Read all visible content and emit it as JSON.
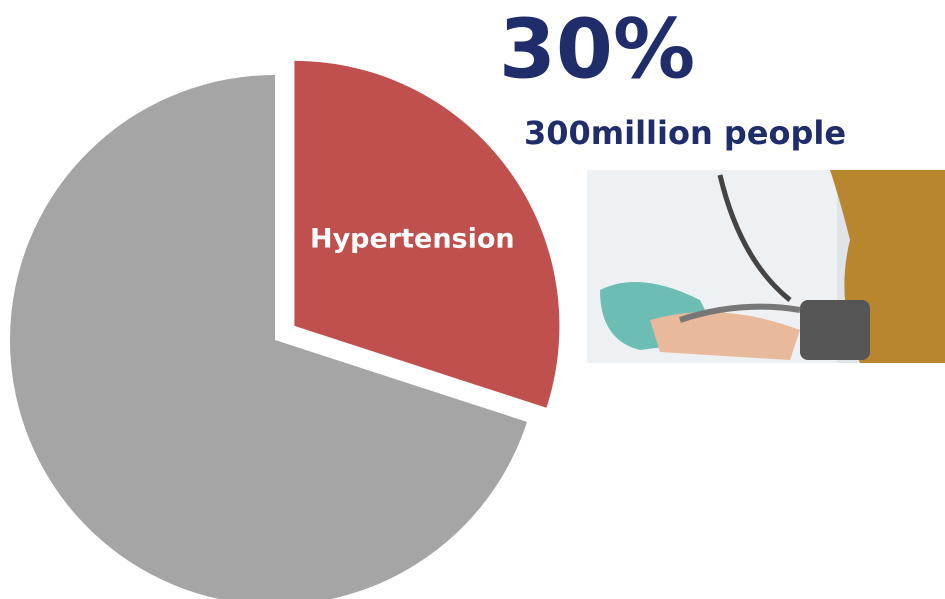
{
  "chart_data": {
    "type": "pie",
    "categories": [
      "Hypertension",
      null
    ],
    "values": [
      30,
      70
    ],
    "value_labels": [
      "30%",
      null
    ],
    "colors": [
      "#c0504d",
      "#a5a5a5"
    ],
    "annotation": "300million people"
  }
}
